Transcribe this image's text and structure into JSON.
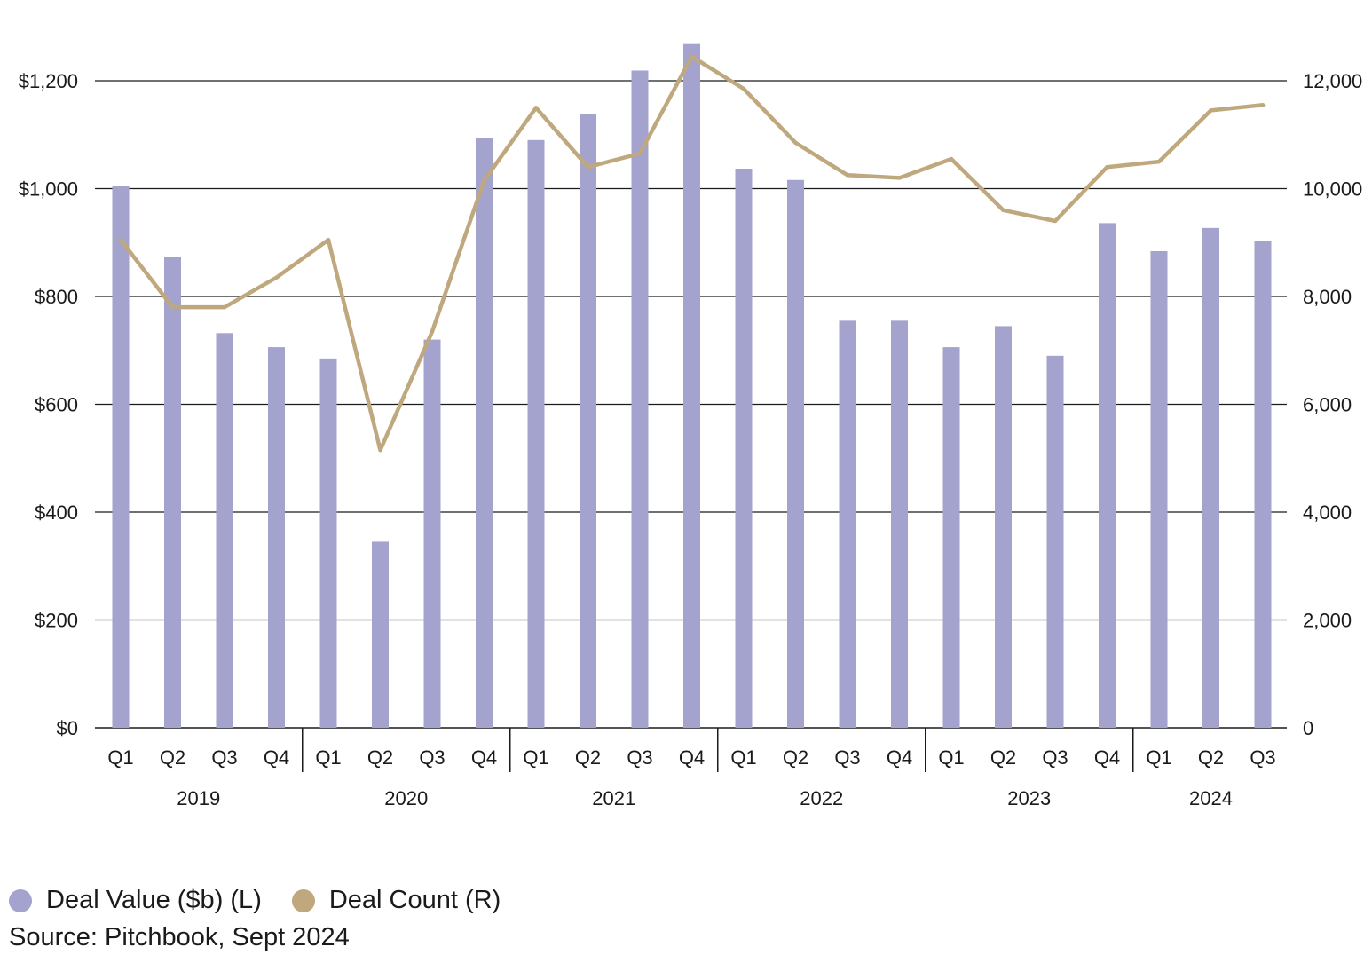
{
  "chart_data": {
    "type": "bar+line",
    "quarters": [
      "Q1",
      "Q2",
      "Q3",
      "Q4",
      "Q1",
      "Q2",
      "Q3",
      "Q4",
      "Q1",
      "Q2",
      "Q3",
      "Q4",
      "Q1",
      "Q2",
      "Q3",
      "Q4",
      "Q1",
      "Q2",
      "Q3",
      "Q4",
      "Q1",
      "Q2",
      "Q3"
    ],
    "years": [
      {
        "label": "2019",
        "count": 4
      },
      {
        "label": "2020",
        "count": 4
      },
      {
        "label": "2021",
        "count": 4
      },
      {
        "label": "2022",
        "count": 4
      },
      {
        "label": "2023",
        "count": 4
      },
      {
        "label": "2024",
        "count": 3
      }
    ],
    "series": [
      {
        "name": "Deal Value ($b) (L)",
        "axis": "left",
        "kind": "bar",
        "color": "#a3a3cd",
        "values": [
          1005,
          873,
          732,
          706,
          685,
          345,
          720,
          1093,
          1090,
          1139,
          1219,
          1268,
          1037,
          1016,
          755,
          755,
          706,
          745,
          690,
          936,
          884,
          927,
          903
        ]
      },
      {
        "name": "Deal Count (R)",
        "axis": "right",
        "kind": "line",
        "color": "#bfa87e",
        "values": [
          9050,
          7800,
          7800,
          8350,
          9050,
          5150,
          7350,
          10150,
          11500,
          10400,
          10650,
          12450,
          11850,
          10850,
          10250,
          10200,
          10550,
          9600,
          9400,
          10400,
          10500,
          11450,
          11550
        ]
      }
    ],
    "left_axis": {
      "ticks": [
        "$0",
        "$200",
        "$400",
        "$600",
        "$800",
        "$1,000",
        "$1,200"
      ],
      "tick_values": [
        0,
        200,
        400,
        600,
        800,
        1000,
        1200
      ],
      "ylim": [
        0,
        1300
      ]
    },
    "right_axis": {
      "ticks": [
        "0",
        "2,000",
        "4,000",
        "6,000",
        "8,000",
        "10,000",
        "12,000"
      ],
      "tick_values": [
        0,
        2000,
        4000,
        6000,
        8000,
        10000,
        12000
      ],
      "ylim": [
        0,
        13000
      ]
    },
    "grid": true,
    "legend_position": "bottom-left"
  },
  "legend": [
    {
      "label": "Deal Value ($b) (L)",
      "color": "#a3a3cd"
    },
    {
      "label": "Deal Count (R)",
      "color": "#bfa87e"
    }
  ],
  "source": "Source: Pitchbook, Sept 2024"
}
